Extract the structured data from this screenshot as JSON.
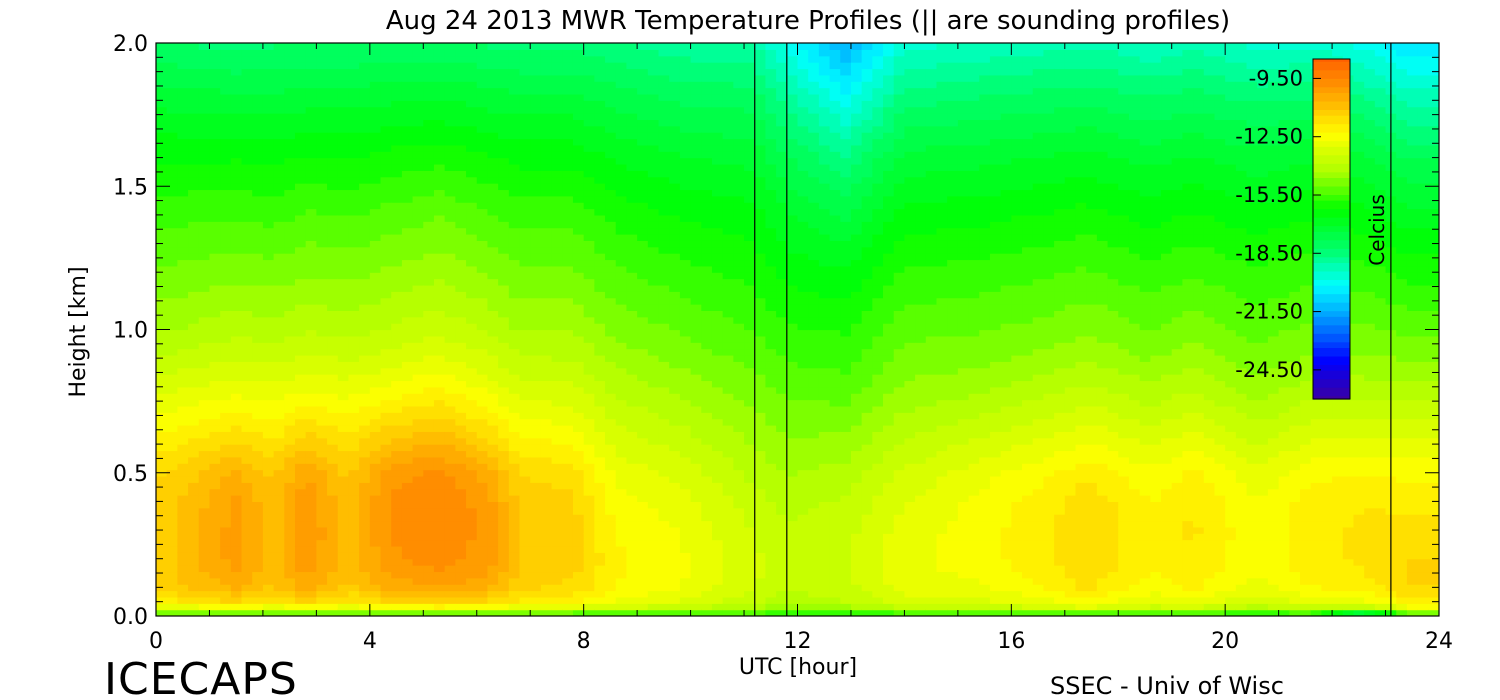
{
  "chart_data": {
    "type": "heatmap",
    "title": "Aug 24 2013 MWR Temperature Profiles (|| are sounding profiles)",
    "xlabel": "UTC [hour]",
    "ylabel": "Height [km]",
    "xlim": [
      0,
      24
    ],
    "ylim": [
      0,
      2.0
    ],
    "x_ticks": [
      "0",
      "4",
      "8",
      "12",
      "16",
      "20",
      "24"
    ],
    "y_ticks": [
      "0.0",
      "0.5",
      "1.0",
      "1.5",
      "2.0"
    ],
    "colorbar": {
      "title": "Celcius",
      "range": [
        -26,
        -8.5
      ],
      "tick_labels": [
        "-9.50",
        "-12.50",
        "-15.50",
        "-18.50",
        "-21.50",
        "-24.50"
      ],
      "tick_values": [
        -9.5,
        -12.5,
        -15.5,
        -18.5,
        -21.5,
        -24.5
      ],
      "colormap": [
        "#3c00a0",
        "#0000ff",
        "#0088ff",
        "#00ffff",
        "#00ff66",
        "#00ff00",
        "#aaff00",
        "#ffff00",
        "#ffaa00",
        "#ff6000"
      ]
    },
    "sounding_profiles_utc": [
      11.2,
      11.8,
      23.1
    ],
    "heights_km": [
      0.0,
      0.02,
      0.05,
      0.1,
      0.15,
      0.2,
      0.3,
      0.4,
      0.5,
      0.6,
      0.7,
      0.8,
      0.9,
      1.0,
      1.2,
      1.4,
      1.6,
      1.8,
      2.0
    ],
    "profiles": [
      {
        "utc": 0.2,
        "temps": [
          -17.0,
          -13.5,
          -12.0,
          -11.3,
          -11.2,
          -11.2,
          -11.2,
          -11.3,
          -11.5,
          -12.0,
          -12.6,
          -13.2,
          -13.8,
          -14.3,
          -15.0,
          -15.6,
          -16.3,
          -17.2,
          -18.2
        ]
      },
      {
        "utc": 1.5,
        "temps": [
          -17.0,
          -13.2,
          -11.5,
          -10.6,
          -10.3,
          -10.1,
          -10.1,
          -10.2,
          -10.6,
          -11.4,
          -12.2,
          -12.9,
          -13.5,
          -14.0,
          -14.8,
          -15.5,
          -16.3,
          -17.3,
          -18.4
        ]
      },
      {
        "utc": 2.2,
        "temps": [
          -17.0,
          -13.4,
          -12.0,
          -11.2,
          -11.0,
          -10.9,
          -10.9,
          -11.0,
          -11.2,
          -11.8,
          -12.4,
          -13.0,
          -13.6,
          -14.1,
          -14.9,
          -15.6,
          -16.4,
          -17.3,
          -18.3
        ]
      },
      {
        "utc": 2.8,
        "temps": [
          -17.0,
          -13.1,
          -11.4,
          -10.5,
          -10.2,
          -10.0,
          -9.9,
          -10.0,
          -10.3,
          -11.1,
          -12.0,
          -12.8,
          -13.4,
          -13.9,
          -14.7,
          -15.4,
          -16.2,
          -17.2,
          -18.3
        ]
      },
      {
        "utc": 3.6,
        "temps": [
          -17.0,
          -13.4,
          -12.0,
          -11.2,
          -11.0,
          -10.9,
          -10.9,
          -11.0,
          -11.2,
          -11.7,
          -12.3,
          -12.9,
          -13.5,
          -14.0,
          -14.8,
          -15.5,
          -16.3,
          -17.2,
          -18.3
        ]
      },
      {
        "utc": 4.4,
        "temps": [
          -17.0,
          -13.2,
          -11.5,
          -10.6,
          -10.2,
          -10.0,
          -9.8,
          -9.8,
          -10.1,
          -10.9,
          -11.8,
          -12.6,
          -13.3,
          -13.8,
          -14.6,
          -15.3,
          -16.1,
          -17.1,
          -18.2
        ]
      },
      {
        "utc": 5.3,
        "temps": [
          -17.0,
          -13.1,
          -11.2,
          -10.3,
          -9.9,
          -9.7,
          -9.5,
          -9.5,
          -9.8,
          -10.6,
          -11.5,
          -12.3,
          -13.0,
          -13.6,
          -14.4,
          -15.1,
          -16.0,
          -17.0,
          -18.2
        ]
      },
      {
        "utc": 6.2,
        "temps": [
          -17.0,
          -13.2,
          -11.5,
          -10.6,
          -10.2,
          -10.1,
          -10.0,
          -10.1,
          -10.5,
          -11.3,
          -12.1,
          -12.8,
          -13.4,
          -13.9,
          -14.7,
          -15.4,
          -16.2,
          -17.2,
          -18.3
        ]
      },
      {
        "utc": 6.8,
        "temps": [
          -17.0,
          -13.4,
          -12.0,
          -11.4,
          -11.2,
          -11.1,
          -11.1,
          -11.2,
          -11.5,
          -12.1,
          -12.7,
          -13.3,
          -13.8,
          -14.3,
          -15.0,
          -15.6,
          -16.4,
          -17.3,
          -18.4
        ]
      },
      {
        "utc": 7.8,
        "temps": [
          -17.0,
          -13.5,
          -12.2,
          -11.6,
          -11.4,
          -11.3,
          -11.3,
          -11.4,
          -11.7,
          -12.3,
          -12.9,
          -13.4,
          -13.9,
          -14.3,
          -15.0,
          -15.6,
          -16.4,
          -17.3,
          -18.4
        ]
      },
      {
        "utc": 8.6,
        "temps": [
          -17.0,
          -13.8,
          -12.8,
          -12.3,
          -12.2,
          -12.2,
          -12.3,
          -12.5,
          -12.8,
          -13.2,
          -13.6,
          -14.0,
          -14.4,
          -14.8,
          -15.4,
          -16.0,
          -16.7,
          -17.6,
          -18.6
        ]
      },
      {
        "utc": 9.8,
        "temps": [
          -17.0,
          -14.0,
          -13.1,
          -12.7,
          -12.6,
          -12.6,
          -12.7,
          -12.9,
          -13.2,
          -13.6,
          -14.0,
          -14.4,
          -14.8,
          -15.1,
          -15.7,
          -16.3,
          -17.0,
          -17.9,
          -18.9
        ]
      },
      {
        "utc": 11.2,
        "temps": [
          -16.5,
          -14.5,
          -13.8,
          -13.5,
          -13.4,
          -13.4,
          -13.5,
          -13.7,
          -14.0,
          -14.3,
          -14.6,
          -14.9,
          -15.2,
          -15.5,
          -16.0,
          -16.5,
          -17.2,
          -18.0,
          -19.0
        ]
      },
      {
        "utc": 11.8,
        "temps": [
          -16.5,
          -14.8,
          -14.1,
          -13.8,
          -13.7,
          -13.7,
          -13.8,
          -14.0,
          -14.3,
          -14.6,
          -14.9,
          -15.2,
          -15.5,
          -15.8,
          -16.4,
          -17.0,
          -17.8,
          -18.8,
          -20.0
        ]
      },
      {
        "utc": 12.9,
        "temps": [
          -17.0,
          -14.6,
          -13.9,
          -13.6,
          -13.5,
          -13.5,
          -13.6,
          -13.8,
          -14.1,
          -14.5,
          -14.9,
          -15.3,
          -15.6,
          -15.9,
          -16.6,
          -17.5,
          -18.6,
          -20.0,
          -21.5
        ]
      },
      {
        "utc": 14.0,
        "temps": [
          -17.0,
          -14.1,
          -13.3,
          -12.9,
          -12.8,
          -12.8,
          -12.9,
          -13.1,
          -13.4,
          -13.8,
          -14.2,
          -14.6,
          -14.9,
          -15.2,
          -15.8,
          -16.5,
          -17.3,
          -18.4,
          -19.6
        ]
      },
      {
        "utc": 15.3,
        "temps": [
          -17.0,
          -14.0,
          -13.2,
          -12.8,
          -12.6,
          -12.5,
          -12.5,
          -12.6,
          -12.9,
          -13.4,
          -13.9,
          -14.4,
          -14.8,
          -15.1,
          -15.7,
          -16.4,
          -17.2,
          -18.2,
          -19.4
        ]
      },
      {
        "utc": 16.8,
        "temps": [
          -17.0,
          -13.8,
          -12.8,
          -12.2,
          -12.0,
          -11.9,
          -11.9,
          -12.0,
          -12.3,
          -12.9,
          -13.5,
          -14.0,
          -14.5,
          -14.9,
          -15.5,
          -16.2,
          -17.0,
          -18.0,
          -19.2
        ]
      },
      {
        "utc": 17.4,
        "temps": [
          -17.0,
          -13.5,
          -12.4,
          -11.8,
          -11.6,
          -11.5,
          -11.5,
          -11.6,
          -12.0,
          -12.6,
          -13.2,
          -13.8,
          -14.3,
          -14.7,
          -15.4,
          -16.1,
          -16.9,
          -17.9,
          -19.1
        ]
      },
      {
        "utc": 18.6,
        "temps": [
          -17.0,
          -13.9,
          -13.0,
          -12.5,
          -12.3,
          -12.2,
          -12.2,
          -12.3,
          -12.6,
          -13.1,
          -13.7,
          -14.2,
          -14.7,
          -15.1,
          -15.7,
          -16.4,
          -17.2,
          -18.2,
          -19.4
        ]
      },
      {
        "utc": 19.4,
        "temps": [
          -17.0,
          -13.8,
          -12.8,
          -12.2,
          -12.0,
          -11.9,
          -11.8,
          -11.9,
          -12.2,
          -12.8,
          -13.4,
          -13.9,
          -14.4,
          -14.8,
          -15.5,
          -16.2,
          -17.0,
          -18.0,
          -19.2
        ]
      },
      {
        "utc": 20.6,
        "temps": [
          -17.5,
          -14.4,
          -13.4,
          -12.9,
          -12.7,
          -12.6,
          -12.6,
          -12.7,
          -13.0,
          -13.5,
          -14.0,
          -14.5,
          -14.9,
          -15.2,
          -15.8,
          -16.5,
          -17.3,
          -18.3,
          -19.6
        ]
      },
      {
        "utc": 21.6,
        "temps": [
          -17.0,
          -13.9,
          -12.9,
          -12.3,
          -12.1,
          -12.0,
          -12.0,
          -12.1,
          -12.4,
          -13.0,
          -13.6,
          -14.1,
          -14.6,
          -15.0,
          -15.6,
          -16.3,
          -17.1,
          -18.2,
          -19.5
        ]
      },
      {
        "utc": 22.6,
        "temps": [
          -21.0,
          -14.3,
          -12.8,
          -12.1,
          -11.9,
          -11.8,
          -11.8,
          -11.9,
          -12.3,
          -12.9,
          -13.5,
          -14.1,
          -14.6,
          -15.0,
          -15.7,
          -16.5,
          -17.4,
          -18.6,
          -20.0
        ]
      },
      {
        "utc": 23.5,
        "temps": [
          -17.0,
          -13.2,
          -12.0,
          -11.5,
          -11.4,
          -11.5,
          -11.7,
          -12.0,
          -12.4,
          -13.0,
          -13.6,
          -14.2,
          -14.7,
          -15.2,
          -16.0,
          -16.9,
          -17.9,
          -19.2,
          -20.6
        ]
      }
    ]
  },
  "footer": {
    "logo_text": "ICECAPS",
    "credit": "SSEC - Univ of Wisc"
  }
}
